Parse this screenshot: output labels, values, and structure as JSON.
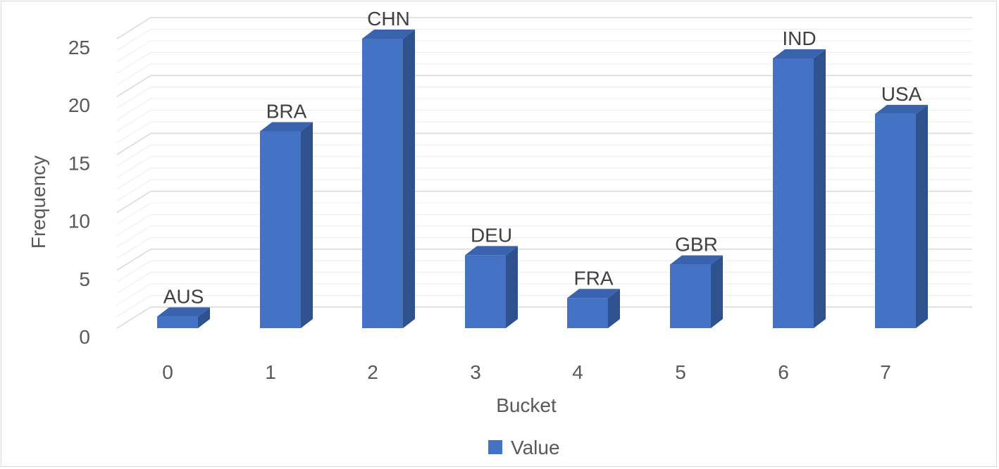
{
  "chart_data": {
    "type": "bar",
    "three_d": true,
    "categories": [
      "0",
      "1",
      "2",
      "3",
      "4",
      "5",
      "6",
      "7"
    ],
    "series": [
      {
        "name": "Value",
        "values": [
          1,
          17,
          25,
          6.3,
          2.6,
          5.5,
          23.3,
          18.5
        ],
        "data_labels": [
          "AUS",
          "BRA",
          "CHN",
          "DEU",
          "FRA",
          "GBR",
          "IND",
          "USA"
        ]
      }
    ],
    "xlabel": "Bucket",
    "ylabel": "Frequency",
    "ylim": [
      0,
      25
    ],
    "yticks": [
      "0",
      "5",
      "10",
      "15",
      "20",
      "25"
    ],
    "grid": true,
    "legend_position": "bottom",
    "colors": {
      "bar_front": "#4472c4",
      "bar_side": "#2f528f",
      "bar_top": "#3a63ad",
      "grid": "#d9d9d9",
      "text": "#595959"
    }
  }
}
